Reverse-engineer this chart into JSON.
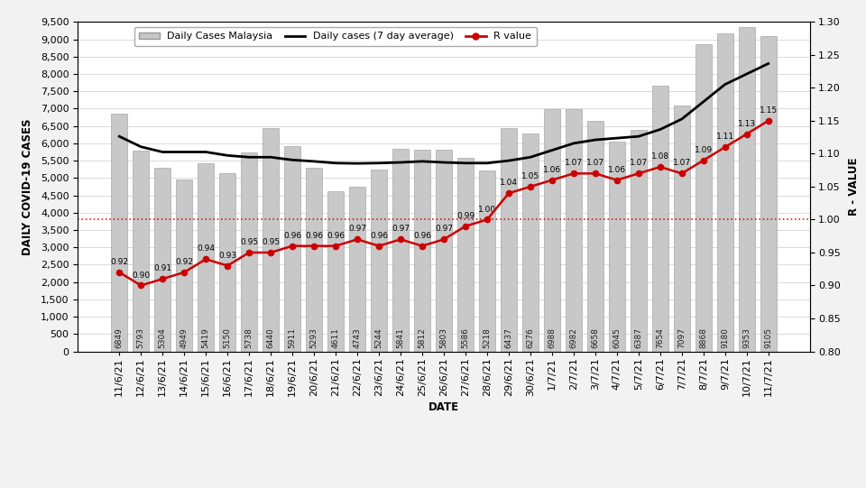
{
  "dates": [
    "11/6/21",
    "12/6/21",
    "13/6/21",
    "14/6/21",
    "15/6/21",
    "16/6/21",
    "17/6/21",
    "18/6/21",
    "19/6/21",
    "20/6/21",
    "21/6/21",
    "22/6/21",
    "23/6/21",
    "24/6/21",
    "25/6/21",
    "26/6/21",
    "27/6/21",
    "28/6/21",
    "29/6/21",
    "30/6/21",
    "1/7/21",
    "2/7/21",
    "3/7/21",
    "4/7/21",
    "5/7/21",
    "6/7/21",
    "7/7/21",
    "8/7/21",
    "9/7/21",
    "10/7/21",
    "11/7/21"
  ],
  "bar_values": [
    6849,
    5793,
    5304,
    4949,
    5419,
    5150,
    5738,
    6440,
    5911,
    5293,
    4611,
    4743,
    5244,
    5841,
    5812,
    5803,
    5586,
    5218,
    6437,
    6276,
    6988,
    6982,
    6658,
    6045,
    6387,
    7654,
    7097,
    8868,
    9180,
    9353,
    9105
  ],
  "avg_line": [
    6200,
    5900,
    5750,
    5750,
    5750,
    5650,
    5600,
    5600,
    5520,
    5480,
    5430,
    5420,
    5430,
    5450,
    5480,
    5450,
    5430,
    5430,
    5500,
    5600,
    5800,
    6000,
    6100,
    6150,
    6200,
    6400,
    6700,
    7200,
    7700,
    8000,
    8300
  ],
  "r_values": [
    0.92,
    0.9,
    0.91,
    0.92,
    0.94,
    0.93,
    0.95,
    0.95,
    0.96,
    0.96,
    0.96,
    0.97,
    0.96,
    0.97,
    0.96,
    0.97,
    0.99,
    1.0,
    1.04,
    1.05,
    1.06,
    1.07,
    1.07,
    1.06,
    1.07,
    1.08,
    1.07,
    1.09,
    1.11,
    1.13,
    1.15
  ],
  "bar_color": "#c8c8c8",
  "bar_edge_color": "#999999",
  "avg_line_color": "#000000",
  "r_line_color": "#cc0000",
  "r_dot_color": "#cc0000",
  "hline_color": "#cc0000",
  "ylabel_left": "DAILY COVID-19 CASES",
  "ylabel_right": "R - VALUE",
  "xlabel": "DATE",
  "ylim_left": [
    0,
    9500
  ],
  "ylim_right": [
    0.8,
    1.3
  ],
  "yticks_left": [
    0,
    500,
    1000,
    1500,
    2000,
    2500,
    3000,
    3500,
    4000,
    4500,
    5000,
    5500,
    6000,
    6500,
    7000,
    7500,
    8000,
    8500,
    9000,
    9500
  ],
  "yticks_right": [
    0.8,
    0.85,
    0.9,
    0.95,
    1.0,
    1.05,
    1.1,
    1.15,
    1.2,
    1.25,
    1.3
  ],
  "legend_items": [
    "Daily Cases Malaysia",
    "Daily cases (7 day average)",
    "R value"
  ],
  "bg_color": "#f2f2f2",
  "plot_bg_color": "#ffffff",
  "label_fontsize": 8.5,
  "tick_fontsize": 8,
  "annot_fontsize": 6.5,
  "bar_val_fontsize": 6.5
}
